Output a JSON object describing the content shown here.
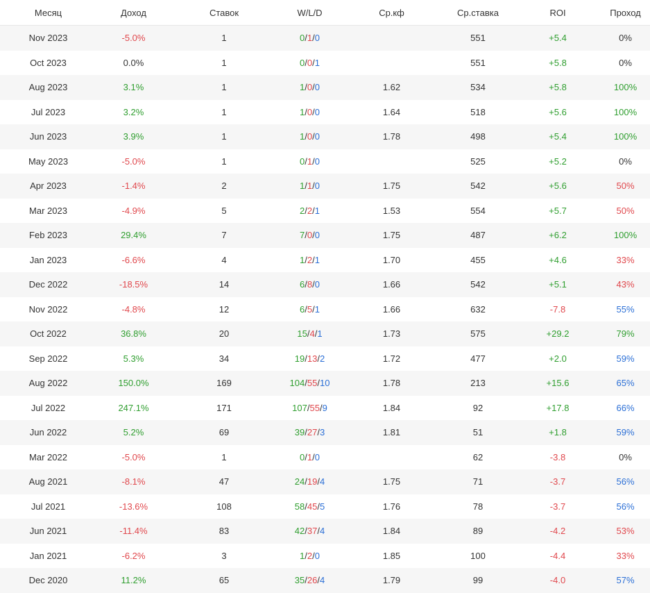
{
  "colors": {
    "positive": "#2f9e2f",
    "negative": "#e0474c",
    "neutral": "#333333",
    "blue": "#2b6fd6"
  },
  "headers": [
    "Месяц",
    "Доход",
    "Ставок",
    "W/L/D",
    "Ср.кф",
    "Ср.ставка",
    "ROI",
    "Проход"
  ],
  "rows": [
    {
      "month": "Nov 2023",
      "income": "-5.0%",
      "bets": "1",
      "w": "0",
      "l": "1",
      "d": "0",
      "avg_odds": "",
      "avg_stake": "551",
      "roi": "+5.4",
      "pass": "0%"
    },
    {
      "month": "Oct 2023",
      "income": "0.0%",
      "bets": "1",
      "w": "0",
      "l": "0",
      "d": "1",
      "avg_odds": "",
      "avg_stake": "551",
      "roi": "+5.8",
      "pass": "0%"
    },
    {
      "month": "Aug 2023",
      "income": "3.1%",
      "bets": "1",
      "w": "1",
      "l": "0",
      "d": "0",
      "avg_odds": "1.62",
      "avg_stake": "534",
      "roi": "+5.8",
      "pass": "100%"
    },
    {
      "month": "Jul 2023",
      "income": "3.2%",
      "bets": "1",
      "w": "1",
      "l": "0",
      "d": "0",
      "avg_odds": "1.64",
      "avg_stake": "518",
      "roi": "+5.6",
      "pass": "100%"
    },
    {
      "month": "Jun 2023",
      "income": "3.9%",
      "bets": "1",
      "w": "1",
      "l": "0",
      "d": "0",
      "avg_odds": "1.78",
      "avg_stake": "498",
      "roi": "+5.4",
      "pass": "100%"
    },
    {
      "month": "May 2023",
      "income": "-5.0%",
      "bets": "1",
      "w": "0",
      "l": "1",
      "d": "0",
      "avg_odds": "",
      "avg_stake": "525",
      "roi": "+5.2",
      "pass": "0%"
    },
    {
      "month": "Apr 2023",
      "income": "-1.4%",
      "bets": "2",
      "w": "1",
      "l": "1",
      "d": "0",
      "avg_odds": "1.75",
      "avg_stake": "542",
      "roi": "+5.6",
      "pass": "50%"
    },
    {
      "month": "Mar 2023",
      "income": "-4.9%",
      "bets": "5",
      "w": "2",
      "l": "2",
      "d": "1",
      "avg_odds": "1.53",
      "avg_stake": "554",
      "roi": "+5.7",
      "pass": "50%"
    },
    {
      "month": "Feb 2023",
      "income": "29.4%",
      "bets": "7",
      "w": "7",
      "l": "0",
      "d": "0",
      "avg_odds": "1.75",
      "avg_stake": "487",
      "roi": "+6.2",
      "pass": "100%"
    },
    {
      "month": "Jan 2023",
      "income": "-6.6%",
      "bets": "4",
      "w": "1",
      "l": "2",
      "d": "1",
      "avg_odds": "1.70",
      "avg_stake": "455",
      "roi": "+4.6",
      "pass": "33%"
    },
    {
      "month": "Dec 2022",
      "income": "-18.5%",
      "bets": "14",
      "w": "6",
      "l": "8",
      "d": "0",
      "avg_odds": "1.66",
      "avg_stake": "542",
      "roi": "+5.1",
      "pass": "43%"
    },
    {
      "month": "Nov 2022",
      "income": "-4.8%",
      "bets": "12",
      "w": "6",
      "l": "5",
      "d": "1",
      "avg_odds": "1.66",
      "avg_stake": "632",
      "roi": "-7.8",
      "pass": "55%"
    },
    {
      "month": "Oct 2022",
      "income": "36.8%",
      "bets": "20",
      "w": "15",
      "l": "4",
      "d": "1",
      "avg_odds": "1.73",
      "avg_stake": "575",
      "roi": "+29.2",
      "pass": "79%"
    },
    {
      "month": "Sep 2022",
      "income": "5.3%",
      "bets": "34",
      "w": "19",
      "l": "13",
      "d": "2",
      "avg_odds": "1.72",
      "avg_stake": "477",
      "roi": "+2.0",
      "pass": "59%"
    },
    {
      "month": "Aug 2022",
      "income": "150.0%",
      "bets": "169",
      "w": "104",
      "l": "55",
      "d": "10",
      "avg_odds": "1.78",
      "avg_stake": "213",
      "roi": "+15.6",
      "pass": "65%"
    },
    {
      "month": "Jul 2022",
      "income": "247.1%",
      "bets": "171",
      "w": "107",
      "l": "55",
      "d": "9",
      "avg_odds": "1.84",
      "avg_stake": "92",
      "roi": "+17.8",
      "pass": "66%"
    },
    {
      "month": "Jun 2022",
      "income": "5.2%",
      "bets": "69",
      "w": "39",
      "l": "27",
      "d": "3",
      "avg_odds": "1.81",
      "avg_stake": "51",
      "roi": "+1.8",
      "pass": "59%"
    },
    {
      "month": "Mar 2022",
      "income": "-5.0%",
      "bets": "1",
      "w": "0",
      "l": "1",
      "d": "0",
      "avg_odds": "",
      "avg_stake": "62",
      "roi": "-3.8",
      "pass": "0%"
    },
    {
      "month": "Aug 2021",
      "income": "-8.1%",
      "bets": "47",
      "w": "24",
      "l": "19",
      "d": "4",
      "avg_odds": "1.75",
      "avg_stake": "71",
      "roi": "-3.7",
      "pass": "56%"
    },
    {
      "month": "Jul 2021",
      "income": "-13.6%",
      "bets": "108",
      "w": "58",
      "l": "45",
      "d": "5",
      "avg_odds": "1.76",
      "avg_stake": "78",
      "roi": "-3.7",
      "pass": "56%"
    },
    {
      "month": "Jun 2021",
      "income": "-11.4%",
      "bets": "83",
      "w": "42",
      "l": "37",
      "d": "4",
      "avg_odds": "1.84",
      "avg_stake": "89",
      "roi": "-4.2",
      "pass": "53%"
    },
    {
      "month": "Jan 2021",
      "income": "-6.2%",
      "bets": "3",
      "w": "1",
      "l": "2",
      "d": "0",
      "avg_odds": "1.85",
      "avg_stake": "100",
      "roi": "-4.4",
      "pass": "33%"
    },
    {
      "month": "Dec 2020",
      "income": "11.2%",
      "bets": "65",
      "w": "35",
      "l": "26",
      "d": "4",
      "avg_odds": "1.79",
      "avg_stake": "99",
      "roi": "-4.0",
      "pass": "57%"
    }
  ]
}
